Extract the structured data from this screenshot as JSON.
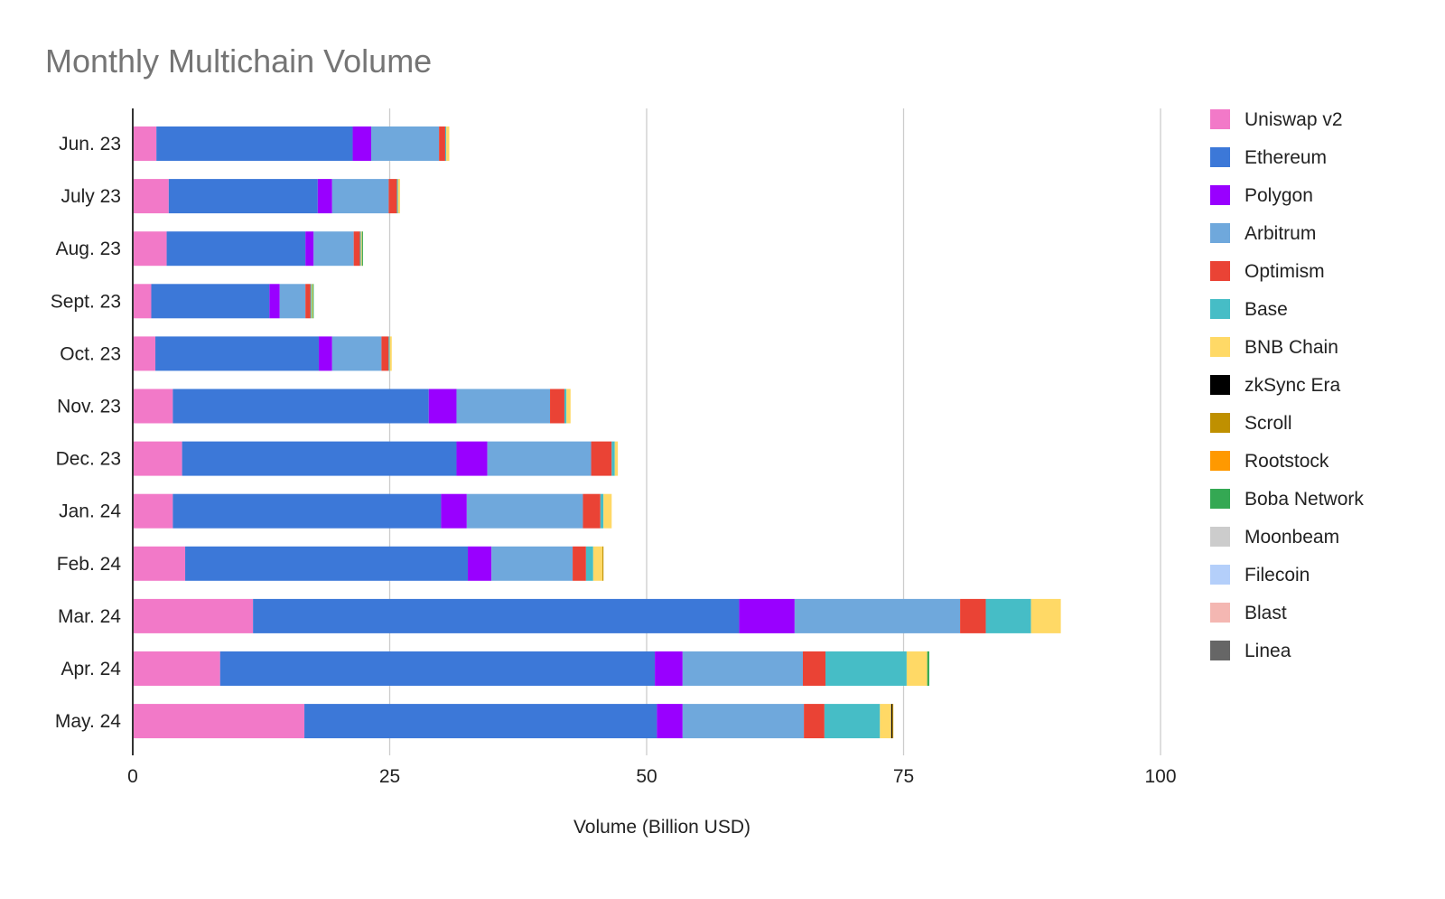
{
  "chart_data": {
    "type": "bar",
    "orientation": "horizontal",
    "stacked": true,
    "title": "Monthly Multichain Volume",
    "xlabel": "Volume (Billion USD)",
    "ylabel": "",
    "xlim": [
      0,
      100
    ],
    "x_ticks": [
      0,
      25,
      50,
      75,
      100
    ],
    "grid": true,
    "legend_position": "right",
    "categories": [
      "Jun. 23",
      "July 23",
      "Aug. 23",
      "Sept. 23",
      "Oct. 23",
      "Nov. 23",
      "Dec. 23",
      "Jan. 24",
      "Feb. 24",
      "Mar. 24",
      "Apr. 24",
      "May. 24"
    ],
    "series": [
      {
        "name": "Uniswap v2",
        "color": "#f279c8",
        "values": [
          2.3,
          3.5,
          3.3,
          1.8,
          2.2,
          3.9,
          4.8,
          3.9,
          5.1,
          11.7,
          8.5,
          16.7
        ]
      },
      {
        "name": "Ethereum",
        "color": "#3c78d8",
        "values": [
          19.1,
          14.5,
          13.5,
          11.5,
          15.9,
          24.9,
          26.7,
          26.1,
          27.5,
          47.3,
          42.3,
          34.3
        ]
      },
      {
        "name": "Polygon",
        "color": "#9900ff",
        "values": [
          1.8,
          1.4,
          0.8,
          1.0,
          1.3,
          2.7,
          3.0,
          2.5,
          2.3,
          5.4,
          2.7,
          2.5
        ]
      },
      {
        "name": "Arbitrum",
        "color": "#6fa8dc",
        "values": [
          6.6,
          5.5,
          3.9,
          2.5,
          4.8,
          9.1,
          10.1,
          11.3,
          7.9,
          16.1,
          11.7,
          11.8
        ]
      },
      {
        "name": "Optimism",
        "color": "#ea4335",
        "values": [
          0.6,
          0.8,
          0.6,
          0.5,
          0.7,
          1.4,
          2.0,
          1.7,
          1.3,
          2.5,
          2.2,
          2.0
        ]
      },
      {
        "name": "Base",
        "color": "#46bdc6",
        "values": [
          0.1,
          0.1,
          0.1,
          0.1,
          0.1,
          0.2,
          0.3,
          0.3,
          0.7,
          4.4,
          7.9,
          5.4
        ]
      },
      {
        "name": "BNB Chain",
        "color": "#ffd966",
        "values": [
          0.3,
          0.2,
          0.1,
          0.1,
          0.2,
          0.4,
          0.3,
          0.8,
          0.9,
          2.9,
          2.0,
          1.1
        ]
      },
      {
        "name": "zkSync Era",
        "color": "#000000",
        "values": [
          0,
          0,
          0,
          0,
          0,
          0,
          0,
          0,
          0,
          0,
          0,
          0.1
        ]
      },
      {
        "name": "Scroll",
        "color": "#bf9000",
        "values": [
          0,
          0,
          0,
          0,
          0,
          0,
          0,
          0,
          0.1,
          0,
          0,
          0.1
        ]
      },
      {
        "name": "Rootstock",
        "color": "#ff9900",
        "values": [
          0,
          0,
          0,
          0,
          0,
          0,
          0,
          0,
          0,
          0,
          0,
          0
        ]
      },
      {
        "name": "Boba Network",
        "color": "#34a853",
        "values": [
          0,
          0,
          0.1,
          0.1,
          0,
          0,
          0,
          0,
          0,
          0,
          0.2,
          0
        ]
      },
      {
        "name": "Moonbeam",
        "color": "#cccccc",
        "values": [
          0,
          0,
          0,
          0,
          0,
          0,
          0,
          0,
          0,
          0,
          0,
          0
        ]
      },
      {
        "name": "Filecoin",
        "color": "#b4cffa",
        "values": [
          0,
          0,
          0,
          0,
          0,
          0,
          0,
          0,
          0,
          0,
          0,
          0
        ]
      },
      {
        "name": "Blast",
        "color": "#f4b7b2",
        "values": [
          0,
          0,
          0,
          0,
          0,
          0,
          0,
          0,
          0,
          0,
          0,
          0
        ]
      },
      {
        "name": "Linea",
        "color": "#666666",
        "values": [
          0,
          0,
          0,
          0,
          0,
          0,
          0,
          0,
          0,
          0,
          0,
          0
        ]
      }
    ]
  }
}
